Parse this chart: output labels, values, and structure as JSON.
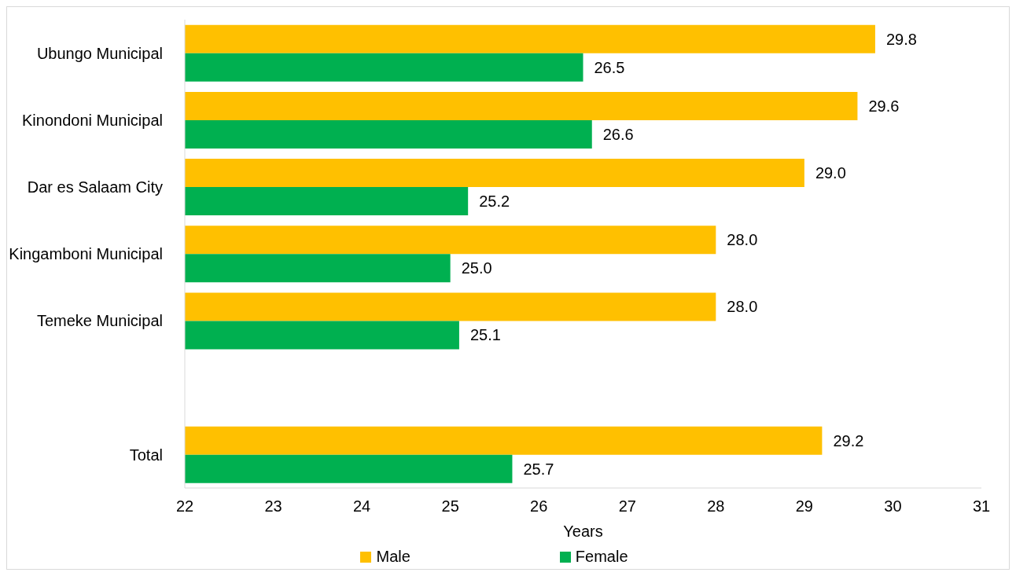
{
  "chart_data": {
    "type": "bar",
    "orientation": "horizontal",
    "xlabel": "Years",
    "categories": [
      "Ubungo Municipal",
      "Kinondoni Municipal",
      "Dar es Salaam City",
      "Kingamboni Municipal",
      "Temeke Municipal",
      null,
      "Total"
    ],
    "series": [
      {
        "name": "Male",
        "color": "#ffc000",
        "values": [
          29.8,
          29.6,
          29.0,
          28.0,
          28.0,
          null,
          29.2
        ],
        "value_labels": [
          "29.8",
          "29.6",
          "29.0",
          "28.0",
          "28.0",
          null,
          "29.2"
        ]
      },
      {
        "name": "Female",
        "color": "#00b050",
        "values": [
          26.5,
          26.6,
          25.2,
          25.0,
          25.1,
          null,
          25.7
        ],
        "value_labels": [
          "26.5",
          "26.6",
          "25.2",
          "25.0",
          "25.1",
          null,
          "25.7"
        ]
      }
    ],
    "xlim": [
      22,
      31
    ],
    "xticks": [
      22,
      23,
      24,
      25,
      26,
      27,
      28,
      29,
      30,
      31
    ],
    "grid": false,
    "legend": "bottom"
  }
}
